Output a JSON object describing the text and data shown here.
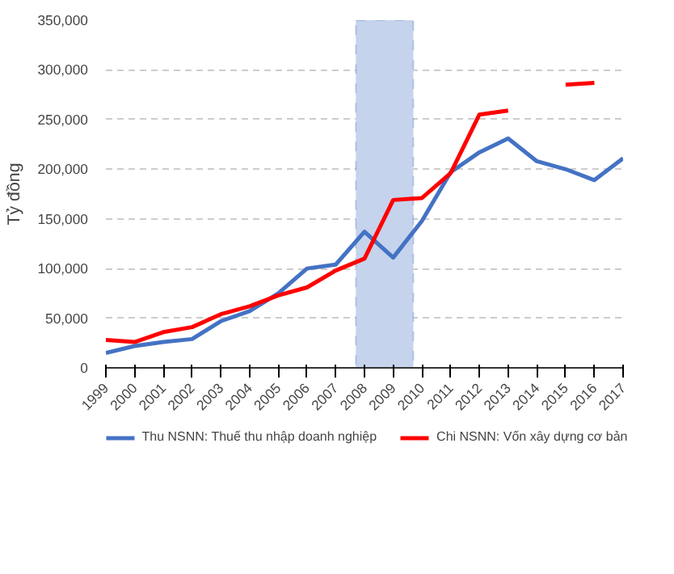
{
  "chart_data": {
    "type": "line",
    "ylabel": "Tỷ đồng",
    "x": [
      1999,
      2000,
      2001,
      2002,
      2003,
      2004,
      2005,
      2006,
      2007,
      2008,
      2009,
      2010,
      2011,
      2012,
      2013,
      2014,
      2015,
      2016,
      2017
    ],
    "series": [
      {
        "name": "Thu NSNN: Thuế thu nhập doanh nghiệp",
        "color": "#4472c4",
        "values": [
          15000,
          22000,
          26000,
          29000,
          47000,
          57000,
          75000,
          100000,
          104000,
          137000,
          111000,
          148000,
          197000,
          217000,
          231000,
          208000,
          200000,
          189000,
          211000
        ]
      },
      {
        "name": "Chi NSNN: Vốn xây dựng cơ bản",
        "color": "#ff0000",
        "values": [
          28000,
          26000,
          36000,
          41000,
          54000,
          62000,
          73000,
          81000,
          98000,
          110000,
          169000,
          171000,
          196000,
          255000,
          259000,
          null,
          285000,
          287000,
          null
        ]
      }
    ],
    "xlim": [
      1999,
      2017
    ],
    "xticks": [
      1999,
      2000,
      2001,
      2002,
      2003,
      2004,
      2005,
      2006,
      2007,
      2008,
      2009,
      2010,
      2011,
      2012,
      2013,
      2014,
      2015,
      2016,
      2017
    ],
    "ylim": [
      0,
      350000
    ],
    "yticks": [
      {
        "value": 0,
        "label": "0"
      },
      {
        "value": 50000,
        "label": "50,000"
      },
      {
        "value": 100000,
        "label": "100,000"
      },
      {
        "value": 150000,
        "label": "150,000"
      },
      {
        "value": 200000,
        "label": "200,000"
      },
      {
        "value": 250000,
        "label": "250,000"
      },
      {
        "value": 300000,
        "label": "300,000"
      },
      {
        "value": 350000,
        "label": "350,000"
      }
    ],
    "bands": [
      {
        "axis": "x",
        "from": 2007.7,
        "to": 2009.7,
        "color": "#c5d3ec"
      }
    ],
    "grid": "y",
    "legend": "bottom",
    "marker": "none",
    "line_style": "solid"
  }
}
